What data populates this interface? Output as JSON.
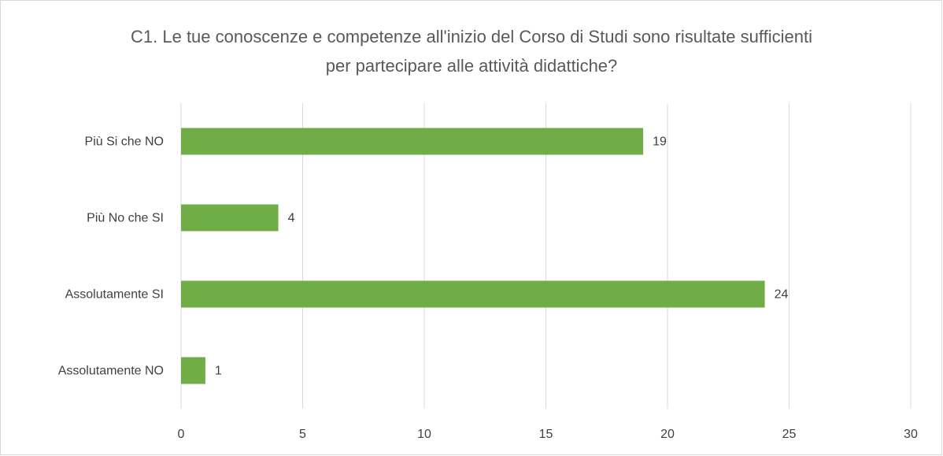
{
  "chart_data": {
    "type": "hbar",
    "title": "C1. Le tue conoscenze e competenze all'inizio del Corso di Studi sono risultate sufficienti per partecipare alle attività didattiche?",
    "categories": [
      "Più Si che NO",
      "Più No che SI",
      "Assolutamente SI",
      "Assolutamente NO"
    ],
    "values": [
      19,
      4,
      24,
      1
    ],
    "color": "#70ad47",
    "xlim": [
      0,
      30
    ],
    "xticks": [
      0,
      5,
      10,
      15,
      20,
      25,
      30
    ],
    "grid": true
  }
}
